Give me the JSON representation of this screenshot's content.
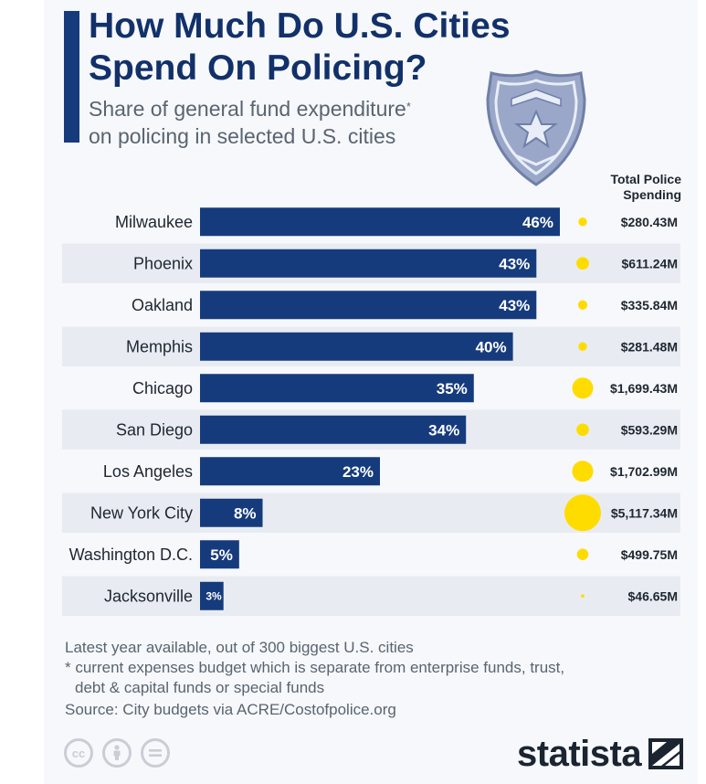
{
  "header": {
    "title": "How Much Do U.S. Cities Spend On Policing?",
    "subtitle": "Share of general fund expenditure",
    "subtitle_mark": "*",
    "subtitle_line2": "on policing in selected U.S. cities"
  },
  "colors": {
    "bar": "#163b7c",
    "bubble": "#fedc00",
    "row_alt": "#e8ecf2",
    "title": "#12316a"
  },
  "chart_data": {
    "type": "bar",
    "orientation": "horizontal",
    "title": "How Much Do U.S. Cities Spend On Policing?",
    "value_unit": "%",
    "categories": [
      "Milwaukee",
      "Phoenix",
      "Oakland",
      "Memphis",
      "Chicago",
      "San Diego",
      "Los Angeles",
      "New York City",
      "Washington D.C.",
      "Jacksonville"
    ],
    "series": [
      {
        "name": "Share of general fund expenditure on policing",
        "values": [
          46,
          43,
          43,
          40,
          35,
          34,
          23,
          8,
          5,
          3
        ],
        "labels": [
          "46%",
          "43%",
          "43%",
          "40%",
          "35%",
          "34%",
          "23%",
          "8%",
          "5%",
          "3%"
        ]
      },
      {
        "name": "Total Police Spending",
        "unit": "$M",
        "values": [
          280.43,
          611.24,
          335.84,
          281.48,
          1699.43,
          593.29,
          1702.99,
          5117.34,
          499.75,
          46.65
        ],
        "labels": [
          "$280.43M",
          "$611.24M",
          "$335.84M",
          "$281.48M",
          "$1,699.43M",
          "$593.29M",
          "$1,702.99M",
          "$5,117.34M",
          "$499.75M",
          "$46.65M"
        ]
      }
    ],
    "spending_header": "Total Police Spending",
    "xlim": [
      0,
      46
    ]
  },
  "footnotes": {
    "line1": "Latest year available, out of 300 biggest U.S. cities",
    "line2": "* current expenses budget which is separate from enterprise funds, trust,",
    "line3": "debt & capital funds or special funds",
    "source": "Source: City budgets via ACRE/Costofpolice.org"
  },
  "license_icons": [
    "cc-icon",
    "attribution-icon",
    "no-derivatives-icon"
  ],
  "brand": {
    "name": "statista"
  }
}
